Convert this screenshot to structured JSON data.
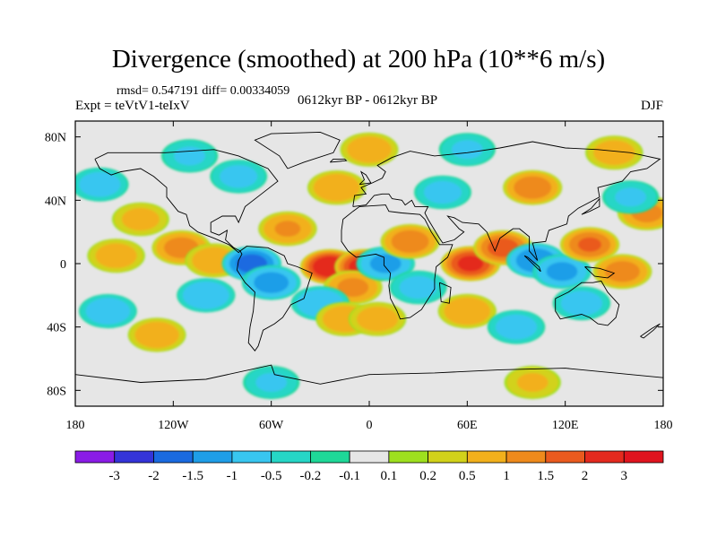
{
  "chart_data": {
    "type": "heatmap",
    "title": "Divergence (smoothed) at 200 hPa (10**6 m/s)",
    "stats_line": "rmsd= 0.547191 diff= 0.00334059",
    "experiment_label": "Expt = teVtV1-teIxV",
    "period_label": "0612kyr BP - 0612kyr BP",
    "season_label": "DJF",
    "x_ticks": [
      "180",
      "120W",
      "60W",
      "0",
      "60E",
      "120E",
      "180"
    ],
    "x_tick_values": [
      -180,
      -120,
      -60,
      0,
      60,
      120,
      180
    ],
    "y_ticks": [
      "80N",
      "40N",
      "0",
      "40S",
      "80S"
    ],
    "y_tick_values": [
      80,
      40,
      0,
      -40,
      -80
    ],
    "xlim": [
      -180,
      180
    ],
    "ylim": [
      -90,
      90
    ],
    "colorbar": {
      "labels": [
        "-3",
        "-2",
        "-1.5",
        "-1",
        "-0.5",
        "-0.2",
        "-0.1",
        "0.1",
        "0.2",
        "0.5",
        "1",
        "1.5",
        "2",
        "3"
      ],
      "colors": [
        "#8a1ce6",
        "#3434d8",
        "#1a6ae0",
        "#1e9ee8",
        "#38c6f0",
        "#26d6c6",
        "#1ed898",
        "#e6e6e6",
        "#9ee01e",
        "#d2d21a",
        "#f2b01c",
        "#ee8a1c",
        "#ea5a1e",
        "#e42a1e",
        "#e0141e"
      ]
    },
    "blobs": [
      {
        "lon": -155,
        "lat": 5,
        "value": 0.8
      },
      {
        "lon": -140,
        "lat": 28,
        "value": 0.7
      },
      {
        "lon": -115,
        "lat": 10,
        "value": 1.3
      },
      {
        "lon": -95,
        "lat": 2,
        "value": 0.9
      },
      {
        "lon": -72,
        "lat": 0,
        "value": -1.8
      },
      {
        "lon": -60,
        "lat": -12,
        "value": -1.3
      },
      {
        "lon": -50,
        "lat": 22,
        "value": 1.1
      },
      {
        "lon": -24,
        "lat": -2,
        "value": 2.6
      },
      {
        "lon": -3,
        "lat": -2,
        "value": 2.4
      },
      {
        "lon": -10,
        "lat": -15,
        "value": 1.2
      },
      {
        "lon": 10,
        "lat": 0,
        "value": -1.2
      },
      {
        "lon": 25,
        "lat": 14,
        "value": 1.4
      },
      {
        "lon": 30,
        "lat": -15,
        "value": -0.7
      },
      {
        "lon": 62,
        "lat": 0,
        "value": 2.2
      },
      {
        "lon": 82,
        "lat": 10,
        "value": 1.8
      },
      {
        "lon": 102,
        "lat": 2,
        "value": -1.5
      },
      {
        "lon": 118,
        "lat": -5,
        "value": -1.2
      },
      {
        "lon": 135,
        "lat": 12,
        "value": 1.6
      },
      {
        "lon": 155,
        "lat": -5,
        "value": 1.3
      },
      {
        "lon": 130,
        "lat": -25,
        "value": -0.8
      },
      {
        "lon": 170,
        "lat": 32,
        "value": 1.2
      },
      {
        "lon": 160,
        "lat": 42,
        "value": -0.6
      },
      {
        "lon": -160,
        "lat": -30,
        "value": -0.9
      },
      {
        "lon": -130,
        "lat": -45,
        "value": 0.9
      },
      {
        "lon": -100,
        "lat": -20,
        "value": -1.0
      },
      {
        "lon": -30,
        "lat": -25,
        "value": -1.0
      },
      {
        "lon": -15,
        "lat": -35,
        "value": 0.9
      },
      {
        "lon": 5,
        "lat": -35,
        "value": 0.8
      },
      {
        "lon": 60,
        "lat": -30,
        "value": 1.0
      },
      {
        "lon": 90,
        "lat": -40,
        "value": -0.8
      },
      {
        "lon": 100,
        "lat": 48,
        "value": 1.4
      },
      {
        "lon": 45,
        "lat": 45,
        "value": -0.7
      },
      {
        "lon": -20,
        "lat": 48,
        "value": 1.0
      },
      {
        "lon": -80,
        "lat": 55,
        "value": -0.7
      },
      {
        "lon": -165,
        "lat": 50,
        "value": -0.8
      },
      {
        "lon": 0,
        "lat": 72,
        "value": 0.9
      },
      {
        "lon": -110,
        "lat": 68,
        "value": -0.6
      },
      {
        "lon": 60,
        "lat": 72,
        "value": -0.6
      },
      {
        "lon": 150,
        "lat": 70,
        "value": 0.8
      },
      {
        "lon": -60,
        "lat": -75,
        "value": -0.6
      },
      {
        "lon": 100,
        "lat": -75,
        "value": 0.6
      }
    ]
  }
}
